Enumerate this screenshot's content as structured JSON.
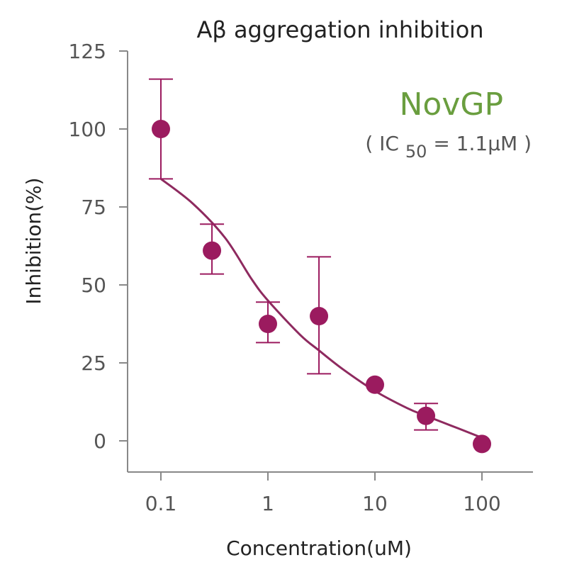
{
  "chart_data": {
    "type": "scatter",
    "title": "Aβ aggregation inhibition",
    "xlabel": "Concentration(uM)",
    "ylabel": "Inhibition(%)",
    "xscale": "log",
    "xlim": [
      0.07,
      300
    ],
    "ylim": [
      -10,
      125
    ],
    "x_ticks": [
      {
        "value": 0.1,
        "label": "0.1"
      },
      {
        "value": 1,
        "label": "1"
      },
      {
        "value": 10,
        "label": "10"
      },
      {
        "value": 100,
        "label": "100"
      }
    ],
    "y_ticks": [
      {
        "value": 0,
        "label": "0"
      },
      {
        "value": 25,
        "label": "25"
      },
      {
        "value": 50,
        "label": "50"
      },
      {
        "value": 75,
        "label": "75"
      },
      {
        "value": 100,
        "label": "100"
      },
      {
        "value": 125,
        "label": "125"
      }
    ],
    "series": [
      {
        "name": "NovGP",
        "color": "#9b1b5f",
        "curve_color": "#8e2a5f",
        "points": [
          {
            "x": 0.1,
            "y": 100,
            "err_low": 84,
            "err_high": 116
          },
          {
            "x": 0.3,
            "y": 61,
            "err_low": 53.5,
            "err_high": 69.5
          },
          {
            "x": 1,
            "y": 37.5,
            "err_low": 31.5,
            "err_high": 44.5
          },
          {
            "x": 3,
            "y": 40,
            "err_low": 21.5,
            "err_high": 59
          },
          {
            "x": 10,
            "y": 18,
            "err_low": null,
            "err_high": null
          },
          {
            "x": 30,
            "y": 8,
            "err_low": 3.5,
            "err_high": 12
          },
          {
            "x": 100,
            "y": -1,
            "err_low": null,
            "err_high": null
          }
        ],
        "fit_curve": [
          {
            "x": 0.1,
            "y": 84
          },
          {
            "x": 0.2,
            "y": 76
          },
          {
            "x": 0.4,
            "y": 65
          },
          {
            "x": 0.7,
            "y": 52
          },
          {
            "x": 1,
            "y": 45
          },
          {
            "x": 2,
            "y": 34
          },
          {
            "x": 3,
            "y": 29
          },
          {
            "x": 5,
            "y": 23
          },
          {
            "x": 10,
            "y": 16
          },
          {
            "x": 20,
            "y": 10.5
          },
          {
            "x": 30,
            "y": 8
          },
          {
            "x": 60,
            "y": 4
          },
          {
            "x": 100,
            "y": 1
          }
        ]
      }
    ],
    "series_label": "NovGP",
    "series_label_color": "#6a9e3f",
    "annotation": {
      "prefix": "( IC",
      "subscript": "50",
      "suffix": " = 1.1μM )"
    }
  }
}
